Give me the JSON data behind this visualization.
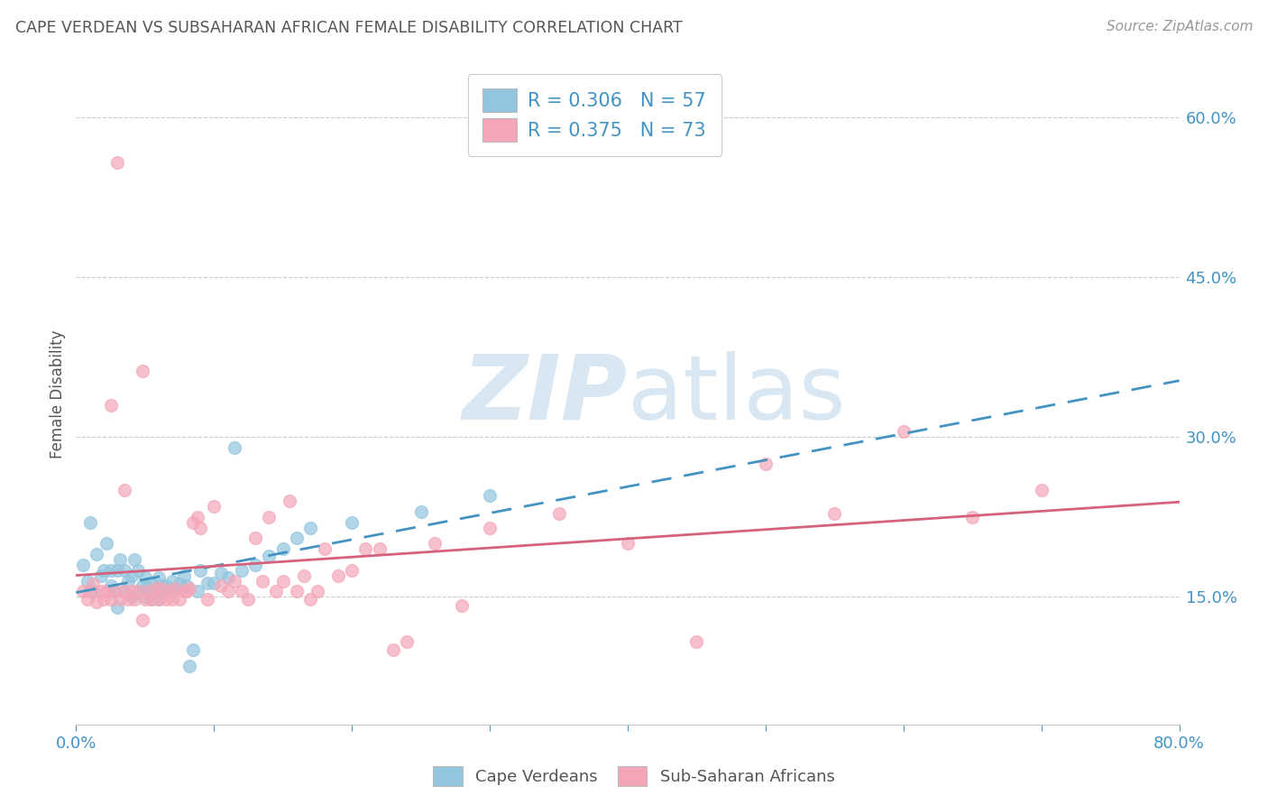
{
  "title": "CAPE VERDEAN VS SUBSAHARAN AFRICAN FEMALE DISABILITY CORRELATION CHART",
  "source": "Source: ZipAtlas.com",
  "ylabel": "Female Disability",
  "ytick_values": [
    0.15,
    0.3,
    0.45,
    0.6
  ],
  "xmin": 0.0,
  "xmax": 0.8,
  "ymin": 0.03,
  "ymax": 0.65,
  "watermark_zip": "ZIP",
  "watermark_atlas": "atlas",
  "legend_label_1": "Cape Verdeans",
  "legend_label_2": "Sub-Saharan Africans",
  "legend_R1": "R = 0.306",
  "legend_N1": "N = 57",
  "legend_R2": "R = 0.375",
  "legend_N2": "N = 73",
  "color_blue": "#92c5de",
  "color_pink": "#f4a6b8",
  "color_trend_blue": "#4393c3",
  "color_trend_pink": "#d6617b",
  "color_text_blue": "#4393c3",
  "background_color": "#ffffff",
  "grid_color": "#cccccc",
  "title_color": "#555555",
  "cape_verdean_x": [
    0.005,
    0.008,
    0.01,
    0.012,
    0.015,
    0.018,
    0.02,
    0.022,
    0.025,
    0.025,
    0.028,
    0.03,
    0.03,
    0.032,
    0.035,
    0.035,
    0.038,
    0.04,
    0.04,
    0.042,
    0.045,
    0.045,
    0.048,
    0.05,
    0.05,
    0.052,
    0.055,
    0.055,
    0.058,
    0.06,
    0.06,
    0.062,
    0.065,
    0.068,
    0.07,
    0.072,
    0.075,
    0.078,
    0.08,
    0.082,
    0.085,
    0.088,
    0.09,
    0.095,
    0.1,
    0.105,
    0.11,
    0.115,
    0.12,
    0.13,
    0.14,
    0.15,
    0.16,
    0.17,
    0.2,
    0.25,
    0.3
  ],
  "cape_verdean_y": [
    0.18,
    0.165,
    0.22,
    0.155,
    0.19,
    0.17,
    0.175,
    0.2,
    0.16,
    0.175,
    0.155,
    0.14,
    0.175,
    0.185,
    0.155,
    0.175,
    0.165,
    0.15,
    0.17,
    0.185,
    0.155,
    0.175,
    0.16,
    0.15,
    0.168,
    0.158,
    0.148,
    0.162,
    0.155,
    0.148,
    0.168,
    0.16,
    0.16,
    0.155,
    0.165,
    0.158,
    0.162,
    0.17,
    0.16,
    0.085,
    0.1,
    0.155,
    0.175,
    0.163,
    0.163,
    0.172,
    0.168,
    0.29,
    0.175,
    0.18,
    0.188,
    0.195,
    0.205,
    0.215,
    0.22,
    0.23,
    0.245
  ],
  "subsaharan_x": [
    0.005,
    0.008,
    0.01,
    0.012,
    0.015,
    0.018,
    0.02,
    0.022,
    0.025,
    0.028,
    0.03,
    0.032,
    0.035,
    0.038,
    0.04,
    0.042,
    0.045,
    0.048,
    0.05,
    0.052,
    0.055,
    0.058,
    0.06,
    0.062,
    0.065,
    0.068,
    0.07,
    0.072,
    0.075,
    0.078,
    0.08,
    0.082,
    0.085,
    0.088,
    0.09,
    0.095,
    0.1,
    0.105,
    0.11,
    0.115,
    0.12,
    0.125,
    0.13,
    0.135,
    0.14,
    0.145,
    0.15,
    0.155,
    0.16,
    0.165,
    0.17,
    0.175,
    0.18,
    0.19,
    0.2,
    0.21,
    0.22,
    0.23,
    0.24,
    0.26,
    0.28,
    0.3,
    0.35,
    0.4,
    0.45,
    0.5,
    0.55,
    0.6,
    0.65,
    0.7,
    0.025,
    0.035,
    0.048
  ],
  "subsaharan_y": [
    0.155,
    0.148,
    0.155,
    0.162,
    0.145,
    0.155,
    0.148,
    0.155,
    0.148,
    0.155,
    0.558,
    0.148,
    0.155,
    0.148,
    0.155,
    0.148,
    0.155,
    0.362,
    0.148,
    0.155,
    0.148,
    0.158,
    0.148,
    0.158,
    0.148,
    0.155,
    0.148,
    0.158,
    0.148,
    0.155,
    0.155,
    0.158,
    0.22,
    0.225,
    0.215,
    0.148,
    0.235,
    0.16,
    0.155,
    0.165,
    0.155,
    0.148,
    0.205,
    0.165,
    0.225,
    0.155,
    0.165,
    0.24,
    0.155,
    0.17,
    0.148,
    0.155,
    0.195,
    0.17,
    0.175,
    0.195,
    0.195,
    0.1,
    0.108,
    0.2,
    0.142,
    0.215,
    0.228,
    0.2,
    0.108,
    0.275,
    0.228,
    0.305,
    0.225,
    0.25,
    0.33,
    0.25,
    0.128
  ]
}
